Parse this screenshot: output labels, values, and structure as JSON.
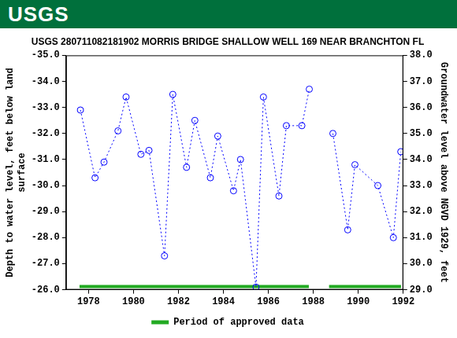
{
  "banner": {
    "text": "USGS",
    "color": "#00703c"
  },
  "chart_data": {
    "type": "line",
    "title": "USGS 280711082181902 MORRIS BRIDGE SHALLOW WELL 169 NEAR BRANCHTON FL",
    "ylabel": [
      "Depth to water level, feet below land",
      "surface"
    ],
    "y2label": "Groundwater level above NGVD 1929, feet",
    "x": [
      1977.64,
      1978.29,
      1978.69,
      1979.31,
      1979.67,
      1980.33,
      1980.69,
      1981.38,
      1981.75,
      1982.36,
      1982.73,
      1983.42,
      1983.75,
      1984.45,
      1984.76,
      1985.45,
      1985.78,
      1986.47,
      1986.8,
      1987.49,
      1987.82,
      null,
      1988.87,
      1989.53,
      1989.85,
      1990.87,
      1991.56,
      1991.89
    ],
    "values": [
      -32.9,
      -30.3,
      -30.9,
      -32.1,
      -33.4,
      -31.2,
      -31.35,
      -27.3,
      -33.5,
      -30.7,
      -32.5,
      -30.3,
      -31.9,
      -29.8,
      -31.0,
      -26.1,
      -33.4,
      -29.6,
      -32.3,
      -32.3,
      -33.7,
      null,
      -32.0,
      -28.3,
      -30.8,
      -30.0,
      -28.0,
      -31.3
    ],
    "color": "#0000ff",
    "marker": "circle",
    "line_style": "dotted",
    "xlim": [
      1977,
      1992
    ],
    "xticks": [
      1978,
      1980,
      1982,
      1984,
      1986,
      1988,
      1990,
      1992
    ],
    "ylim": [
      -35,
      -26
    ],
    "yticks": [
      {
        "value": -35,
        "label": "-35.0"
      },
      {
        "value": -34,
        "label": "-34.0"
      },
      {
        "value": -33,
        "label": "-33.0"
      },
      {
        "value": -32,
        "label": "-32.0"
      },
      {
        "value": -31,
        "label": "-31.0"
      },
      {
        "value": -30,
        "label": "-30.0"
      },
      {
        "value": -29,
        "label": "-29.0"
      },
      {
        "value": -28,
        "label": "-28.0"
      },
      {
        "value": -27,
        "label": "-27.0"
      },
      {
        "value": -26,
        "label": "-26.0"
      }
    ],
    "y2lim": [
      29,
      38
    ],
    "y2ticks": [
      {
        "value": 29,
        "label": "29.0"
      },
      {
        "value": 30,
        "label": "30.0"
      },
      {
        "value": 31,
        "label": "31.0"
      },
      {
        "value": 32,
        "label": "32.0"
      },
      {
        "value": 33,
        "label": "33.0"
      },
      {
        "value": 34,
        "label": "34.0"
      },
      {
        "value": 35,
        "label": "35.0"
      },
      {
        "value": 36,
        "label": "36.0"
      },
      {
        "value": 37,
        "label": "37.0"
      },
      {
        "value": 38,
        "label": "38.0"
      }
    ],
    "approved_periods": {
      "name": "Period of approved data",
      "color": "#22aa22",
      "ranges": [
        [
          1977.6,
          1987.8
        ],
        [
          1988.7,
          1991.9
        ]
      ]
    },
    "legend": "bottom",
    "grid": false
  }
}
